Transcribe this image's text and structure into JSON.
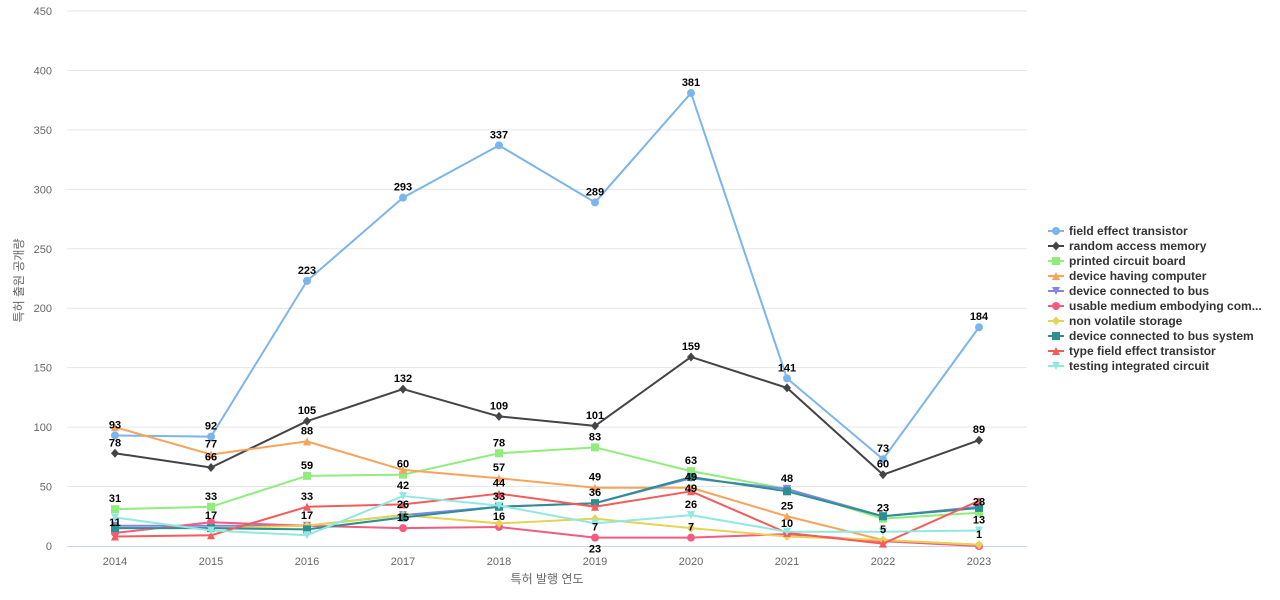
{
  "chart_data": {
    "type": "line",
    "title": "",
    "xlabel": "특허 발행 연도",
    "ylabel": "특허 출원 공개량",
    "ylim": [
      0,
      450
    ],
    "yticks": [
      0,
      50,
      100,
      150,
      200,
      250,
      300,
      350,
      400,
      450
    ],
    "categories": [
      "2014",
      "2015",
      "2016",
      "2017",
      "2018",
      "2019",
      "2020",
      "2021",
      "2022",
      "2023"
    ],
    "grid": true,
    "legend_position": "right",
    "series": [
      {
        "name": "field effect transistor",
        "color": "#7cb5ec",
        "marker": "circle",
        "values": [
          93,
          92,
          223,
          293,
          337,
          289,
          381,
          141,
          73,
          184
        ],
        "labels": [
          true,
          true,
          true,
          true,
          true,
          true,
          true,
          true,
          true,
          true
        ]
      },
      {
        "name": "random access memory",
        "color": "#434348",
        "marker": "diamond",
        "values": [
          78,
          66,
          105,
          132,
          109,
          101,
          159,
          133,
          60,
          89
        ],
        "labels": [
          true,
          true,
          true,
          true,
          true,
          true,
          true,
          false,
          true,
          true
        ]
      },
      {
        "name": "printed circuit board",
        "color": "#90ed7d",
        "marker": "square",
        "values": [
          31,
          33,
          59,
          60,
          78,
          83,
          63,
          48,
          23,
          28
        ],
        "labels": [
          true,
          true,
          true,
          true,
          true,
          true,
          true,
          true,
          true,
          true
        ]
      },
      {
        "name": "device having computer",
        "color": "#f7a35c",
        "marker": "triangle",
        "values": [
          100,
          77,
          88,
          64,
          57,
          49,
          49,
          25,
          5,
          1
        ],
        "labels": [
          false,
          true,
          true,
          false,
          true,
          true,
          true,
          true,
          true,
          true
        ]
      },
      {
        "name": "device connected to bus",
        "color": "#8085e9",
        "marker": "triangle-down",
        "values": [
          17,
          17,
          17,
          26,
          33,
          36,
          57,
          48,
          25,
          33
        ],
        "labels": [
          false,
          true,
          true,
          true,
          true,
          false,
          false,
          false,
          false,
          false
        ]
      },
      {
        "name": "usable medium embodying com...",
        "color": "#f15c80",
        "marker": "circle",
        "values": [
          11,
          20,
          17,
          15,
          16,
          7,
          7,
          10,
          4,
          0
        ],
        "labels": [
          true,
          false,
          false,
          true,
          true,
          true,
          true,
          true,
          false,
          false
        ]
      },
      {
        "name": "non volatile storage",
        "color": "#e4d354",
        "marker": "diamond",
        "values": [
          15,
          15,
          17,
          26,
          19,
          23,
          15,
          8,
          5,
          1
        ],
        "labels": [
          false,
          false,
          false,
          false,
          false,
          false,
          false,
          false,
          false,
          false
        ]
      },
      {
        "name": "device connected to bus system",
        "color": "#2b908f",
        "marker": "square",
        "values": [
          15,
          15,
          14,
          24,
          33,
          36,
          58,
          46,
          25,
          32
        ],
        "labels": [
          false,
          false,
          false,
          false,
          false,
          true,
          false,
          false,
          false,
          false
        ]
      },
      {
        "name": "type field effect transistor",
        "color": "#f45b5b",
        "marker": "triangle",
        "values": [
          8,
          9,
          33,
          35,
          44,
          33,
          46,
          11,
          2,
          38
        ],
        "labels": [
          false,
          false,
          true,
          false,
          true,
          false,
          false,
          false,
          false,
          false
        ]
      },
      {
        "name": "testing integrated circuit",
        "color": "#91e8e1",
        "marker": "triangle-down",
        "values": [
          24,
          13,
          9,
          42,
          34,
          19,
          26,
          12,
          12,
          13
        ],
        "labels": [
          false,
          false,
          false,
          true,
          false,
          false,
          true,
          false,
          false,
          true
        ]
      }
    ],
    "data_label_text": [
      [
        "93",
        "92",
        "223",
        "293",
        "337",
        "289",
        "381",
        "141",
        "73",
        "184"
      ],
      [
        "78",
        "66",
        "105",
        "132",
        "109",
        "101",
        "159",
        "",
        "60",
        "89"
      ],
      [
        "31",
        "33",
        "59",
        "60",
        "78",
        "83",
        "63",
        "48",
        "23",
        "28"
      ],
      [
        "",
        "77",
        "88",
        "",
        "57",
        "49",
        "49",
        "25",
        "5",
        "1"
      ],
      [
        "",
        "17",
        "17",
        "26",
        "33",
        "",
        "",
        "",
        "",
        ""
      ],
      [
        "11",
        "",
        "",
        "15",
        "16",
        "7",
        "7",
        "10",
        "",
        ""
      ],
      [
        "",
        "",
        "",
        "",
        "",
        "",
        "",
        "",
        "",
        ""
      ],
      [
        "",
        "",
        "",
        "",
        "",
        "36",
        "",
        "",
        "",
        ""
      ],
      [
        "",
        "",
        "33",
        "",
        "44",
        "",
        "",
        "",
        "",
        ""
      ],
      [
        "",
        "",
        "",
        "42",
        "",
        "",
        "26",
        "",
        "",
        "13"
      ]
    ],
    "extra_labels": [
      {
        "text": "23",
        "series": 5,
        "index": 5
      },
      {
        "text": "49",
        "series": 7,
        "index": 6
      }
    ]
  }
}
